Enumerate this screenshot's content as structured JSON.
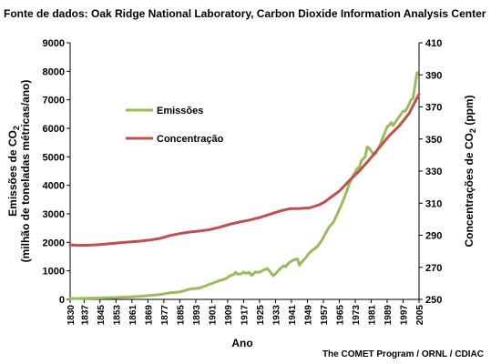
{
  "source_text": "Fonte de dados: Oak Ridge National Laboratory, Carbon Dioxide Information Analysis Center",
  "credit_text": "The COMET Program / ORNL / CDIAC",
  "chart_data": {
    "type": "line",
    "title": "",
    "xlabel": "Ano",
    "ylabel_left": {
      "line1_prefix": "Emissões de CO",
      "line1_sub": "2",
      "line2": "(milhão de toneladas métricas/ano)"
    },
    "ylabel_right": {
      "prefix": "Concentrações de CO",
      "sub": "2",
      "suffix": " (ppm)"
    },
    "xlim": [
      1830,
      2005
    ],
    "x_ticks": [
      "1830",
      "1837",
      "1845",
      "1853",
      "1861",
      "1869",
      "1877",
      "1885",
      "1893",
      "1901",
      "1909",
      "1917",
      "1925",
      "1933",
      "1941",
      "1949",
      "1957",
      "1965",
      "1973",
      "1981",
      "1989",
      "1997",
      "2005"
    ],
    "ylim_left": [
      0,
      9000
    ],
    "y_ticks_left": [
      "0",
      "1000",
      "2000",
      "3000",
      "4000",
      "5000",
      "6000",
      "7000",
      "8000",
      "9000"
    ],
    "ylim_right": [
      250,
      410
    ],
    "y_ticks_right": [
      "250",
      "270",
      "290",
      "310",
      "330",
      "350",
      "370",
      "390",
      "410"
    ],
    "legend_position": "upper-left inside plot",
    "grid": false,
    "series": [
      {
        "name": "Emissões",
        "color": "#9bbb59",
        "axis": "left",
        "x": [
          1830,
          1840,
          1850,
          1855,
          1860,
          1865,
          1870,
          1875,
          1880,
          1885,
          1890,
          1895,
          1900,
          1905,
          1908,
          1910,
          1912,
          1913,
          1914,
          1916,
          1917,
          1918,
          1920,
          1921,
          1923,
          1925,
          1927,
          1929,
          1930,
          1931,
          1932,
          1933,
          1935,
          1937,
          1938,
          1940,
          1942,
          1944,
          1945,
          1946,
          1948,
          1950,
          1952,
          1954,
          1956,
          1958,
          1960,
          1962,
          1964,
          1966,
          1968,
          1970,
          1972,
          1974,
          1975,
          1976,
          1978,
          1979,
          1980,
          1982,
          1983,
          1985,
          1987,
          1989,
          1990,
          1991,
          1992,
          1994,
          1996,
          1997,
          1998,
          1999,
          2000,
          2001,
          2002,
          2003,
          2004
        ],
        "values": [
          30,
          40,
          60,
          70,
          90,
          110,
          140,
          170,
          230,
          260,
          360,
          400,
          530,
          660,
          720,
          820,
          870,
          950,
          880,
          900,
          960,
          920,
          940,
          840,
          960,
          950,
          1030,
          1080,
          1000,
          900,
          830,
          900,
          1050,
          1180,
          1150,
          1300,
          1380,
          1420,
          1200,
          1300,
          1450,
          1630,
          1750,
          1850,
          2050,
          2300,
          2550,
          2700,
          3000,
          3300,
          3650,
          4050,
          4350,
          4600,
          4600,
          4850,
          5000,
          5350,
          5300,
          5100,
          5100,
          5350,
          5700,
          6050,
          6100,
          6200,
          6100,
          6300,
          6500,
          6600,
          6600,
          6700,
          6850,
          7000,
          7050,
          7500,
          7950
        ]
      },
      {
        "name": "Concentração",
        "color": "#c0504d",
        "axis": "right",
        "x": [
          1830,
          1835,
          1840,
          1845,
          1850,
          1855,
          1860,
          1865,
          1870,
          1875,
          1880,
          1885,
          1890,
          1895,
          1900,
          1905,
          1910,
          1915,
          1920,
          1925,
          1930,
          1935,
          1940,
          1945,
          1950,
          1955,
          1958,
          1960,
          1965,
          1970,
          1975,
          1980,
          1985,
          1990,
          1995,
          2000,
          2005
        ],
        "values": [
          284.0,
          283.7,
          283.8,
          284.2,
          284.8,
          285.3,
          285.8,
          286.3,
          287.0,
          288.0,
          289.8,
          291.0,
          292.0,
          292.6,
          293.5,
          295.0,
          296.8,
          298.2,
          299.5,
          301.0,
          303.0,
          305.0,
          306.5,
          306.7,
          307.0,
          309.0,
          311.0,
          313.0,
          317.5,
          324.0,
          330.0,
          337.0,
          344.5,
          352.0,
          358.0,
          366.0,
          378.0
        ]
      }
    ]
  }
}
